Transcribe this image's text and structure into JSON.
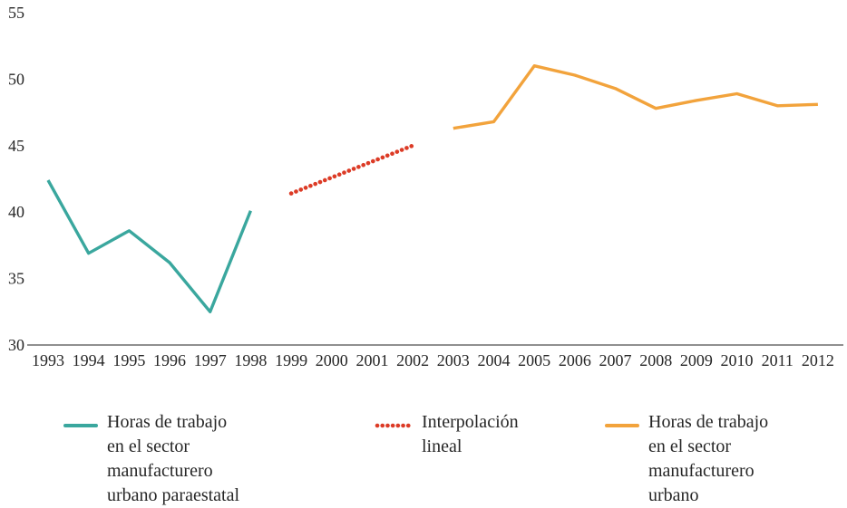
{
  "chart_data": {
    "type": "line",
    "title": "",
    "xlabel": "",
    "ylabel": "",
    "ylim": [
      30,
      55
    ],
    "xlim": [
      1993,
      2012
    ],
    "grid": false,
    "legend_position": "bottom",
    "axis_color": "#808080",
    "text_color": "#262626",
    "y_ticks": [
      30,
      35,
      40,
      45,
      50,
      55
    ],
    "x_ticks": [
      1993,
      1994,
      1995,
      1996,
      1997,
      1998,
      1999,
      2000,
      2001,
      2002,
      2003,
      2004,
      2005,
      2006,
      2007,
      2008,
      2009,
      2010,
      2011,
      2012
    ],
    "series": [
      {
        "name": "Horas de trabajo en el sector manufacturero urbano paraestatal",
        "color": "#3AA79E",
        "style": "solid",
        "x": [
          1993,
          1994,
          1995,
          1996,
          1997,
          1998
        ],
        "values": [
          42.4,
          36.9,
          38.6,
          36.2,
          32.5,
          40.1
        ]
      },
      {
        "name": "Interpolación lineal",
        "color": "#DC3B26",
        "style": "dotted",
        "x": [
          1999,
          2000,
          2001,
          2002
        ],
        "values": [
          41.4,
          42.6,
          43.8,
          45.0
        ]
      },
      {
        "name": "Horas de trabajo en el sector manufacturero urbano",
        "color": "#F2A33C",
        "style": "solid",
        "x": [
          2003,
          2004,
          2005,
          2006,
          2007,
          2008,
          2009,
          2010,
          2011,
          2012
        ],
        "values": [
          46.3,
          46.8,
          51.0,
          50.3,
          49.3,
          47.8,
          48.4,
          48.9,
          48.0,
          48.1
        ]
      }
    ]
  },
  "legend": {
    "items": [
      {
        "label_lines": [
          "Horas de trabajo",
          "en el sector",
          "manufacturero",
          "urbano paraestatal"
        ],
        "color": "#3AA79E",
        "style": "solid"
      },
      {
        "label_lines": [
          "Interpolación",
          "lineal"
        ],
        "color": "#DC3B26",
        "style": "dotted"
      },
      {
        "label_lines": [
          "Horas de trabajo",
          "en el sector",
          "manufacturero",
          "urbano"
        ],
        "color": "#F2A33C",
        "style": "solid"
      }
    ]
  }
}
